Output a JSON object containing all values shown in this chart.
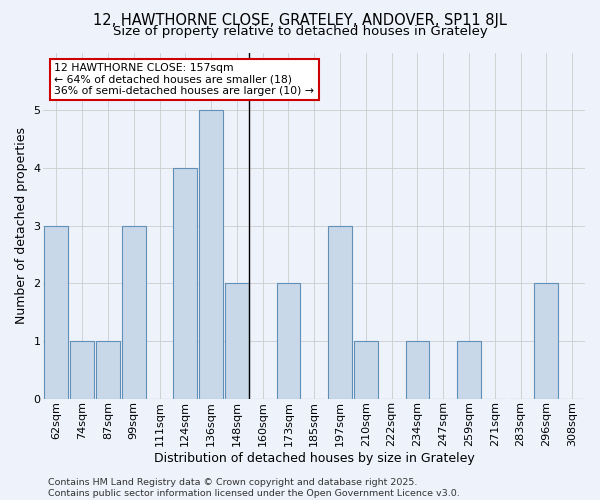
{
  "title": "12, HAWTHORNE CLOSE, GRATELEY, ANDOVER, SP11 8JL",
  "subtitle": "Size of property relative to detached houses in Grateley",
  "xlabel": "Distribution of detached houses by size in Grateley",
  "ylabel": "Number of detached properties",
  "categories": [
    "62sqm",
    "74sqm",
    "87sqm",
    "99sqm",
    "111sqm",
    "124sqm",
    "136sqm",
    "148sqm",
    "160sqm",
    "173sqm",
    "185sqm",
    "197sqm",
    "210sqm",
    "222sqm",
    "234sqm",
    "247sqm",
    "259sqm",
    "271sqm",
    "283sqm",
    "296sqm",
    "308sqm"
  ],
  "values": [
    3,
    1,
    1,
    3,
    0,
    4,
    5,
    2,
    0,
    2,
    0,
    3,
    1,
    0,
    1,
    0,
    1,
    0,
    0,
    2,
    0
  ],
  "bar_color": "#c8d8e8",
  "bar_edge_color": "#6090b8",
  "vline_index": 7,
  "vline_color": "#000000",
  "background_color": "#eef2fb",
  "grid_color": "#cccccc",
  "annotation_line1": "12 HAWTHORNE CLOSE: 157sqm",
  "annotation_line2": "← 64% of detached houses are smaller (18)",
  "annotation_line3": "36% of semi-detached houses are larger (10) →",
  "annotation_box_color": "#ffffff",
  "annotation_box_edge_color": "#cc0000",
  "footer": "Contains HM Land Registry data © Crown copyright and database right 2025.\nContains public sector information licensed under the Open Government Licence v3.0.",
  "ylim": [
    0,
    6
  ],
  "yticks": [
    0,
    1,
    2,
    3,
    4,
    5
  ],
  "title_fontsize": 10.5,
  "subtitle_fontsize": 9.5,
  "axis_label_fontsize": 9,
  "tick_fontsize": 8,
  "annotation_fontsize": 7.8,
  "footer_fontsize": 6.8
}
